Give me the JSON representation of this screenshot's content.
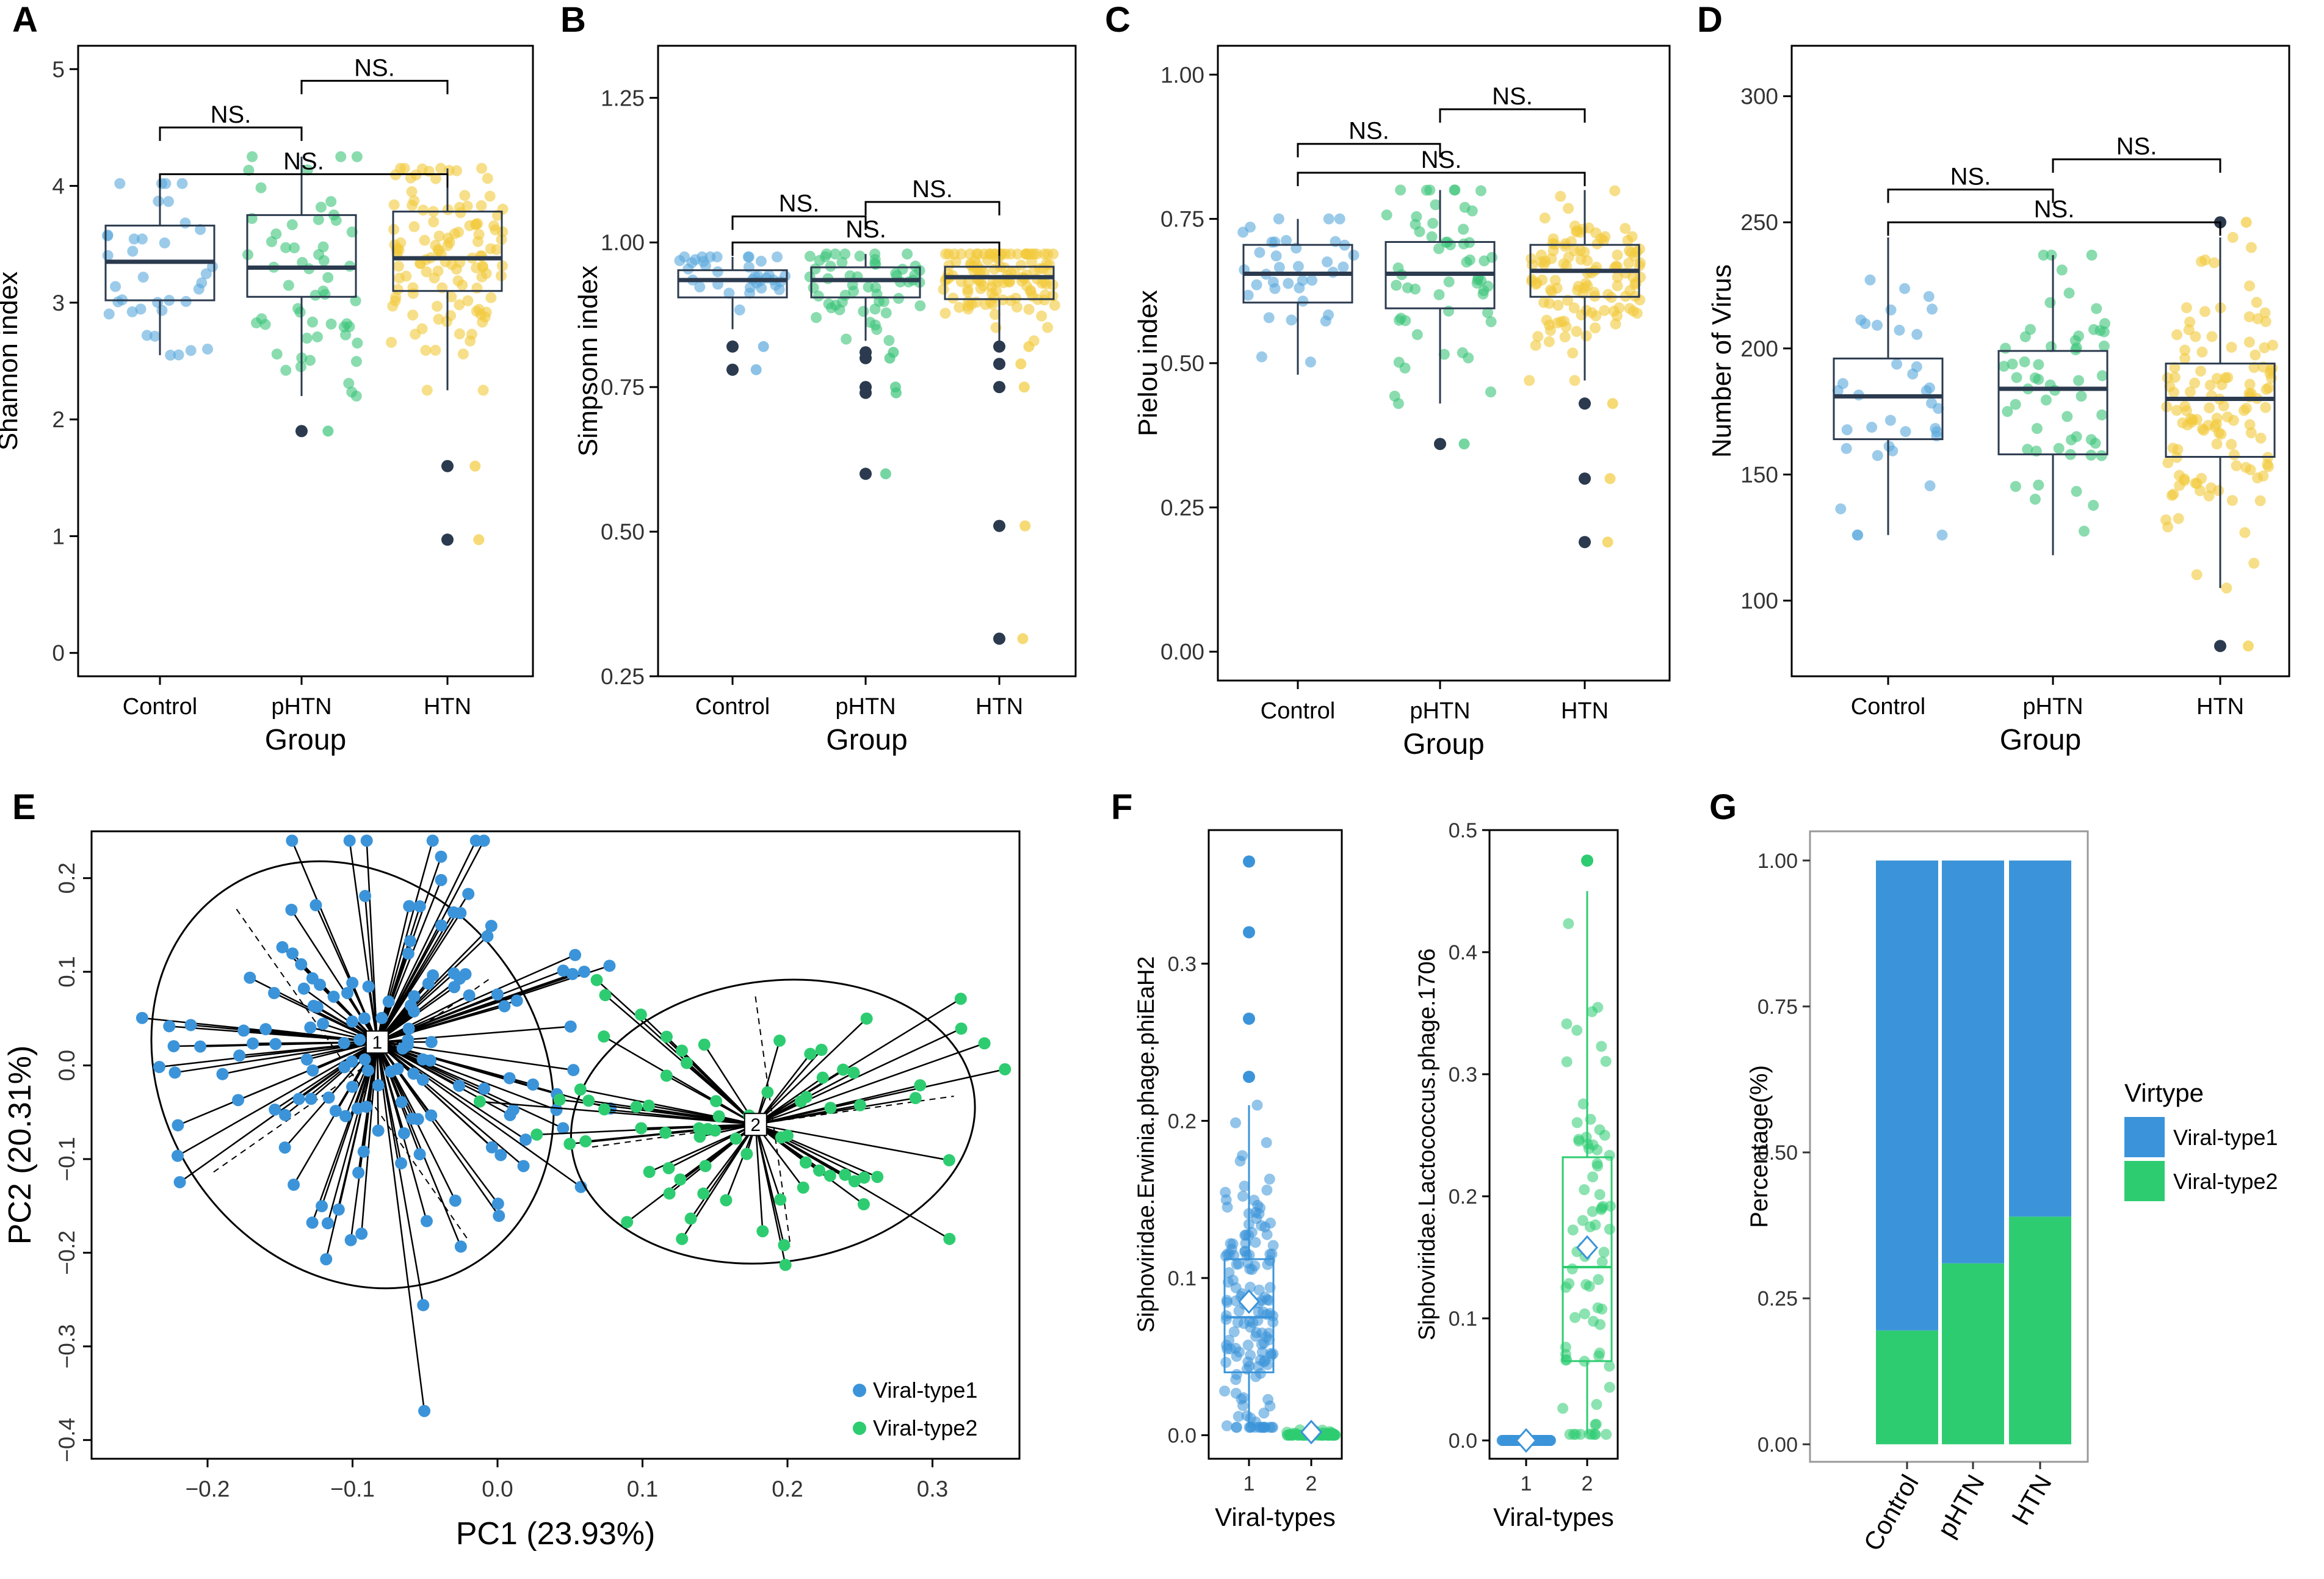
{
  "colors": {
    "control": "#5AA8DC",
    "phtn": "#3CC47A",
    "htn": "#F2CA3A",
    "outlier": "#2B3A4E",
    "viral_type1": "#3B94D9",
    "viral_type2": "#2ECC71",
    "box_stroke": "#2B3A4E"
  },
  "chart_data": [
    {
      "panel": "A",
      "type": "box",
      "xlabel": "Group",
      "ylabel": "Shannon index",
      "categories": [
        "Control",
        "pHTN",
        "HTN"
      ],
      "ylim": [
        -0.2,
        5.2
      ],
      "yticks": [
        0,
        1,
        2,
        3,
        4,
        5
      ],
      "boxes": [
        {
          "q1": 3.02,
          "median": 3.35,
          "q3": 3.66,
          "whisker_low": 2.55,
          "whisker_high": 4.02,
          "outliers": []
        },
        {
          "q1": 3.05,
          "median": 3.3,
          "q3": 3.75,
          "whisker_low": 2.2,
          "whisker_high": 4.25,
          "outliers": [
            1.9
          ]
        },
        {
          "q1": 3.1,
          "median": 3.38,
          "q3": 3.78,
          "whisker_low": 2.25,
          "whisker_high": 4.15,
          "outliers": [
            1.6,
            0.97
          ]
        }
      ],
      "jitter_n": [
        36,
        55,
        120
      ],
      "significance": [
        {
          "from": 0,
          "to": 1,
          "label": "NS.",
          "y": 4.5
        },
        {
          "from": 1,
          "to": 2,
          "label": "NS.",
          "y": 4.9
        },
        {
          "from": 0,
          "to": 2,
          "label": "NS.",
          "y": 4.1
        }
      ]
    },
    {
      "panel": "B",
      "type": "box",
      "xlabel": "Group",
      "ylabel": "Simpsonn index",
      "categories": [
        "Control",
        "pHTN",
        "HTN"
      ],
      "ylim": [
        0.25,
        1.34
      ],
      "yticks": [
        0.25,
        0.5,
        0.75,
        1.0,
        1.25
      ],
      "ytick_labels": [
        "0.25",
        "0.50",
        "0.75",
        "1.00",
        "1.25"
      ],
      "boxes": [
        {
          "q1": 0.905,
          "median": 0.935,
          "q3": 0.952,
          "whisker_low": 0.85,
          "whisker_high": 0.975,
          "outliers": [
            0.82,
            0.78
          ]
        },
        {
          "q1": 0.905,
          "median": 0.935,
          "q3": 0.957,
          "whisker_low": 0.83,
          "whisker_high": 0.98,
          "outliers": [
            0.81,
            0.8,
            0.75,
            0.74,
            0.6
          ]
        },
        {
          "q1": 0.902,
          "median": 0.94,
          "q3": 0.958,
          "whisker_low": 0.83,
          "whisker_high": 0.98,
          "outliers": [
            0.82,
            0.79,
            0.75,
            0.51,
            0.315
          ]
        }
      ],
      "jitter_n": [
        36,
        55,
        120
      ],
      "significance": [
        {
          "from": 0,
          "to": 1,
          "label": "NS.",
          "y": 1.045
        },
        {
          "from": 1,
          "to": 2,
          "label": "NS.",
          "y": 1.07
        },
        {
          "from": 0,
          "to": 2,
          "label": "NS.",
          "y": 1.0
        }
      ]
    },
    {
      "panel": "C",
      "type": "box",
      "xlabel": "Group",
      "ylabel": "Pielou index",
      "categories": [
        "Control",
        "pHTN",
        "HTN"
      ],
      "ylim": [
        -0.05,
        1.05
      ],
      "yticks": [
        0,
        0.25,
        0.5,
        0.75,
        1.0
      ],
      "ytick_labels": [
        "0.00",
        "0.25",
        "0.50",
        "0.75",
        "1.00"
      ],
      "boxes": [
        {
          "q1": 0.605,
          "median": 0.655,
          "q3": 0.705,
          "whisker_low": 0.48,
          "whisker_high": 0.75,
          "outliers": []
        },
        {
          "q1": 0.595,
          "median": 0.655,
          "q3": 0.71,
          "whisker_low": 0.43,
          "whisker_high": 0.8,
          "outliers": [
            0.36
          ]
        },
        {
          "q1": 0.615,
          "median": 0.66,
          "q3": 0.705,
          "whisker_low": 0.47,
          "whisker_high": 0.8,
          "outliers": [
            0.43,
            0.3,
            0.19
          ]
        }
      ],
      "jitter_n": [
        36,
        55,
        120
      ],
      "significance": [
        {
          "from": 0,
          "to": 1,
          "label": "NS.",
          "y": 0.88
        },
        {
          "from": 1,
          "to": 2,
          "label": "NS.",
          "y": 0.94
        },
        {
          "from": 0,
          "to": 2,
          "label": "NS.",
          "y": 0.83
        }
      ]
    },
    {
      "panel": "D",
      "type": "box",
      "xlabel": "Group",
      "ylabel": "Number of Virus",
      "categories": [
        "Control",
        "pHTN",
        "HTN"
      ],
      "ylim": [
        70,
        320
      ],
      "yticks": [
        100,
        150,
        200,
        250,
        300
      ],
      "boxes": [
        {
          "q1": 164,
          "median": 181,
          "q3": 196,
          "whisker_low": 126,
          "whisker_high": 244,
          "outliers": []
        },
        {
          "q1": 158,
          "median": 184,
          "q3": 199,
          "whisker_low": 118,
          "whisker_high": 237,
          "outliers": []
        },
        {
          "q1": 157,
          "median": 180,
          "q3": 194,
          "whisker_low": 105,
          "whisker_high": 244,
          "outliers": [
            250,
            82
          ]
        }
      ],
      "jitter_n": [
        36,
        55,
        120
      ],
      "significance": [
        {
          "from": 0,
          "to": 1,
          "label": "NS.",
          "y": 263
        },
        {
          "from": 1,
          "to": 2,
          "label": "NS.",
          "y": 275
        },
        {
          "from": 0,
          "to": 2,
          "label": "NS.",
          "y": 250
        }
      ]
    },
    {
      "panel": "E",
      "type": "scatter",
      "xlabel": "PC1 (23.93%)",
      "ylabel": "PC2 (20.31%)",
      "xlim": [
        -0.28,
        0.36
      ],
      "ylim": [
        -0.42,
        0.25
      ],
      "xticks": [
        -0.2,
        -0.1,
        0.0,
        0.1,
        0.2,
        0.3
      ],
      "xtick_labels": [
        "−0.2",
        "−0.1",
        "0.0",
        "0.1",
        "0.2",
        "0.3"
      ],
      "yticks": [
        -0.4,
        -0.3,
        -0.2,
        -0.1,
        0.0,
        0.1,
        0.2
      ],
      "ytick_labels": [
        "−0.4",
        "−0.3",
        "−0.2",
        "−0.1",
        "0.0",
        "0.1",
        "0.2"
      ],
      "series": [
        {
          "name": "Viral-type1",
          "center_label": "1",
          "centroid": [
            -0.083,
            0.025
          ],
          "n": 150,
          "spread": [
            0.068,
            0.105
          ],
          "ellipse": {
            "cx": -0.1,
            "cy": -0.01,
            "rx": 0.13,
            "ry": 0.24,
            "angle_deg": -35
          }
        },
        {
          "name": "Viral-type2",
          "center_label": "2",
          "centroid": [
            0.178,
            -0.063
          ],
          "n": 75,
          "spread": [
            0.075,
            0.075
          ],
          "ellipse": {
            "cx": 0.19,
            "cy": -0.06,
            "rx": 0.14,
            "ry": 0.15,
            "angle_deg": -8
          }
        }
      ],
      "legend": "bottom-right"
    },
    {
      "panel": "F",
      "type": "box",
      "subplots": [
        {
          "ylabel": "Siphoviridae.Erwinia.phage.phiEaH2",
          "xlabel": "Viral-types",
          "categories": [
            "1",
            "2"
          ],
          "ylim": [
            -0.015,
            0.385
          ],
          "yticks": [
            0,
            0.1,
            0.2,
            0.3
          ],
          "ytick_labels": [
            "0.0",
            "0.1",
            "0.2",
            "0.3"
          ],
          "boxes": [
            {
              "q1": 0.04,
              "median": 0.075,
              "q3": 0.112,
              "whisker_low": 0.005,
              "whisker_high": 0.21,
              "mean": 0.085,
              "outliers": [
                0.228,
                0.265,
                0.32,
                0.365
              ]
            },
            {
              "q1": 0.0,
              "median": 0.0,
              "q3": 0.002,
              "whisker_low": 0.0,
              "whisker_high": 0.005,
              "mean": 0.002,
              "outliers": []
            }
          ],
          "jitter_n": [
            150,
            75
          ]
        },
        {
          "ylabel": "Siphoviridae.Lactococcus.phage.1706",
          "xlabel": "Viral-types",
          "categories": [
            "1",
            "2"
          ],
          "ylim": [
            -0.015,
            0.5
          ],
          "yticks": [
            0,
            0.1,
            0.2,
            0.3,
            0.4,
            0.5
          ],
          "ytick_labels": [
            "0.0",
            "0.1",
            "0.2",
            "0.3",
            "0.4",
            "0.5"
          ],
          "boxes": [
            {
              "q1": 0.0,
              "median": 0.0,
              "q3": 0.0,
              "whisker_low": 0.0,
              "whisker_high": 0.0,
              "mean": 0.0,
              "outliers": []
            },
            {
              "q1": 0.065,
              "median": 0.142,
              "q3": 0.232,
              "whisker_low": 0.005,
              "whisker_high": 0.45,
              "mean": 0.158,
              "outliers": [
                0.475
              ]
            }
          ],
          "jitter_n": [
            150,
            75
          ]
        }
      ]
    },
    {
      "panel": "G",
      "type": "bar",
      "stacked": true,
      "ylabel": "Percentage(%)",
      "categories": [
        "Control",
        "pHTN",
        "HTN"
      ],
      "ylim": [
        -0.03,
        1.05
      ],
      "yticks": [
        0,
        0.25,
        0.5,
        0.75,
        1.0
      ],
      "ytick_labels": [
        "0.00",
        "0.25",
        "0.50",
        "0.75",
        "1.00"
      ],
      "series": [
        {
          "name": "Viral-type2",
          "values": [
            0.195,
            0.31,
            0.39
          ]
        },
        {
          "name": "Viral-type1",
          "values": [
            0.805,
            0.69,
            0.61
          ]
        }
      ],
      "legend_title": "Virtype",
      "legend_entries": [
        "Viral-type1",
        "Viral-type2"
      ],
      "legend": "right"
    }
  ]
}
